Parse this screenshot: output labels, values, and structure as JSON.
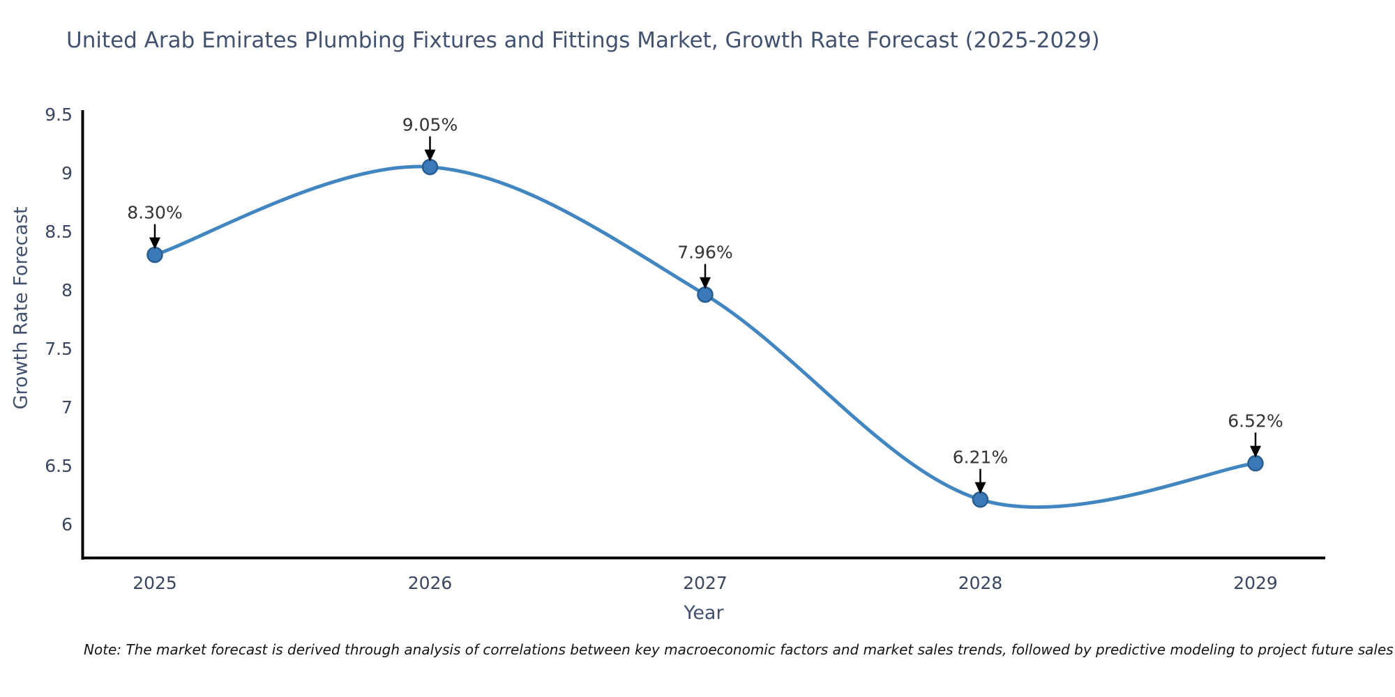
{
  "title": "United Arab Emirates Plumbing Fixtures and Fittings Market, Growth Rate Forecast (2025-2029)",
  "note": "Note: The market forecast is derived through analysis of correlations between key macroeconomic factors and market sales trends, followed by predictive modeling to project future sales",
  "chart_data": {
    "type": "line",
    "title": "United Arab Emirates Plumbing Fixtures and Fittings Market, Growth Rate Forecast (2025-2029)",
    "xlabel": "Year",
    "ylabel": "Growth Rate Forecast",
    "x": [
      2025,
      2026,
      2027,
      2028,
      2029
    ],
    "xtick_labels": [
      "2025",
      "2026",
      "2027",
      "2028",
      "2029"
    ],
    "series": [
      {
        "name": "Growth Rate Forecast",
        "values": [
          8.3,
          9.05,
          7.96,
          6.21,
          6.52
        ]
      }
    ],
    "point_labels": [
      "8.30%",
      "9.05%",
      "7.96%",
      "6.21%",
      "6.52%"
    ],
    "yticks": [
      6,
      6.5,
      7,
      7.5,
      8,
      8.5,
      9,
      9.5
    ],
    "ytick_labels": [
      "6",
      "6.5",
      "7",
      "7.5",
      "8",
      "8.5",
      "9",
      "9.5"
    ],
    "ylim": [
      5.71,
      9.54
    ],
    "grid": false,
    "legend": "none",
    "line_style": "smooth-spline",
    "marker": "circle",
    "annotation_arrows": true,
    "colors": {
      "line": "#4186c0",
      "marker_fill": "#3a7ab8",
      "marker_edge": "#295d91",
      "spine": "#000000",
      "axis_text": "#42526e",
      "tick_text": "#39465e",
      "annotation_text": "#333333",
      "arrow": "#000000",
      "background": "#ffffff"
    }
  }
}
